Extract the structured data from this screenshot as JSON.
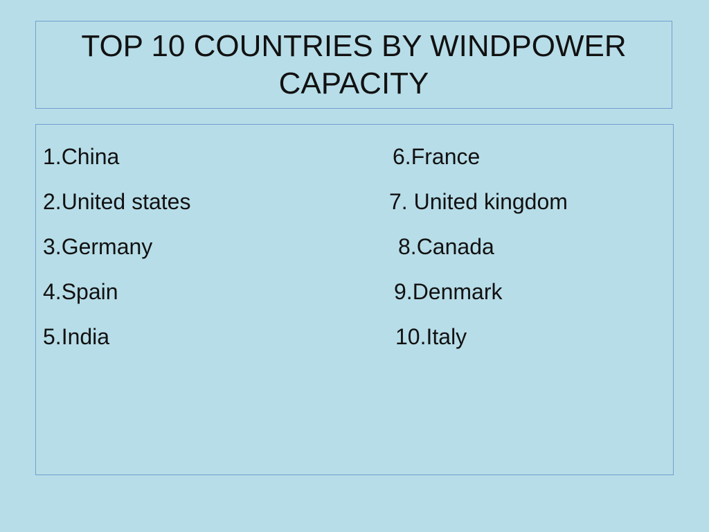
{
  "slide": {
    "title": "TOP 10 COUNTRIES BY WINDPOWER CAPACITY",
    "left_column": [
      "1.China",
      "2.United states",
      "3.Germany",
      "4.Spain",
      "5.India"
    ],
    "right_column": [
      "6.France",
      "7. United kingdom",
      "8.Canada",
      "9.Denmark",
      "10.Italy"
    ]
  },
  "colors": {
    "background": "#b7dde8",
    "border": "#6f9fcf",
    "text": "#111111"
  }
}
